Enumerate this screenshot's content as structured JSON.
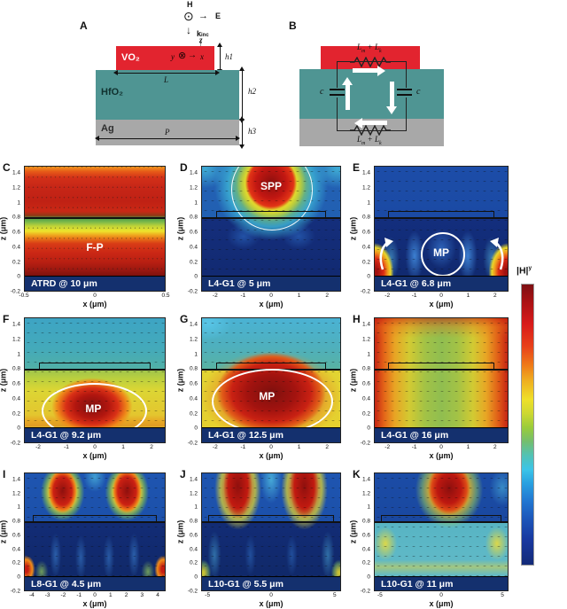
{
  "schematic": {
    "a_letter": "A",
    "b_letter": "B",
    "incident": {
      "h": "H",
      "e": "E",
      "k": "k",
      "k_sub": "inc"
    },
    "axes_3d": {
      "z": "z",
      "y": "y",
      "x": "x"
    },
    "layers": {
      "vo2": "VO₂",
      "hfo2": "HfO₂",
      "ag": "Ag"
    },
    "dims": {
      "h1": "h1",
      "h2": "h2",
      "h3": "h3",
      "L": "L",
      "P": "P"
    },
    "circuit": {
      "cap_left": "c",
      "cap_right": "c",
      "L1": "L",
      "s1": "m",
      "mid": "+",
      "L2": "L",
      "s2": "k"
    }
  },
  "axes": {
    "xlabel": "x (μm)",
    "zlabel": "z (μm)",
    "z": {
      "min": -0.2,
      "max": 1.5,
      "ticks": [
        1.4,
        1.2,
        1,
        0.8,
        0.6,
        0.4,
        0.2,
        0,
        -0.2
      ]
    }
  },
  "panels": {
    "C": {
      "letter": "C",
      "label": "ATRD @ 10 μm",
      "annotation": "F-P",
      "x": {
        "min": -0.5,
        "max": 0.5,
        "ticks": [
          -0.5,
          0,
          0.5
        ]
      }
    },
    "D": {
      "letter": "D",
      "label": "L4-G1 @ 5 μm",
      "annotation": "SPP",
      "x": {
        "min": -2.5,
        "max": 2.5,
        "ticks": [
          -2,
          -1,
          0,
          1,
          2
        ]
      }
    },
    "E": {
      "letter": "E",
      "label": "L4-G1 @ 6.8 μm",
      "annotation": "MP",
      "x": {
        "min": -2.5,
        "max": 2.5,
        "ticks": [
          -2,
          -1,
          0,
          1,
          2
        ]
      }
    },
    "F": {
      "letter": "F",
      "label": "L4-G1 @ 9.2 μm",
      "annotation": "MP",
      "x": {
        "min": -2.5,
        "max": 2.5,
        "ticks": [
          -2,
          -1,
          0,
          1,
          2
        ]
      }
    },
    "G": {
      "letter": "G",
      "label": "L4-G1 @ 12.5 μm",
      "annotation": "MP",
      "x": {
        "min": -2.5,
        "max": 2.5,
        "ticks": [
          -2,
          -1,
          0,
          1,
          2
        ]
      }
    },
    "H": {
      "letter": "H",
      "label": "L4-G1 @ 16 μm",
      "x": {
        "min": -2.5,
        "max": 2.5,
        "ticks": [
          -2,
          -1,
          0,
          1,
          2
        ]
      }
    },
    "I": {
      "letter": "I",
      "label": "L8-G1 @ 4.5 μm",
      "x": {
        "min": -4.5,
        "max": 4.5,
        "ticks": [
          -4,
          -3,
          -2,
          -1,
          0,
          1,
          2,
          3,
          4
        ]
      }
    },
    "J": {
      "letter": "J",
      "label": "L10-G1 @ 5.5 μm",
      "x": {
        "min": -5.5,
        "max": 5.5,
        "ticks": [
          -5,
          0,
          5
        ]
      }
    },
    "K": {
      "letter": "K",
      "label": "L10-G1 @ 11 μm",
      "x": {
        "min": -5.5,
        "max": 5.5,
        "ticks": [
          -5,
          0,
          5
        ]
      }
    }
  },
  "colorbar": {
    "label_main": "|H|",
    "label_sup": "y",
    "top_color": "#7d1013",
    "bottom_color": "#132a78",
    "colormap": "jet"
  },
  "colors": {
    "vo2_red": "#e2242f",
    "hfo2_teal": "#4f9593",
    "ag_gray": "#a8a8a8",
    "substrate_navy": "#14306e"
  },
  "chart_data": [
    {
      "panel": "C",
      "type": "heatmap",
      "title": "ATRD @ 10 μm",
      "annotation": "F-P",
      "xlabel": "x (μm)",
      "ylabel": "z (μm)",
      "xlim": [
        -0.5,
        0.5
      ],
      "zlim": [
        -0.2,
        1.5
      ],
      "surface_z": 0.8,
      "colormap": "jet",
      "description": "Unpatterned film; horizontal Fabry-Perot bands: orange/red above z=0.8, green-yellow node z≈0.6-0.8, red darkening to maroon toward z=0, Ag (navy) below z=0; dotted contour lines."
    },
    {
      "panel": "D",
      "type": "heatmap",
      "title": "L4-G1 @ 5 μm",
      "annotation": "SPP",
      "xlabel": "x (μm)",
      "ylabel": "z (μm)",
      "xlim": [
        -2.5,
        2.5
      ],
      "zlim": [
        -0.2,
        1.5
      ],
      "surface_z": 0.8,
      "colormap": "jet",
      "description": "SPP hotspot above VO2 bar centered at x=0, z≈1.0-1.5 with yellow-green halo and white contour; dark blue spacer below; quiver arrows."
    },
    {
      "panel": "E",
      "type": "heatmap",
      "title": "L4-G1 @ 6.8 μm",
      "annotation": "MP",
      "xlabel": "x (μm)",
      "ylabel": "z (μm)",
      "xlim": [
        -2.5,
        2.5
      ],
      "zlim": [
        -0.2,
        1.5
      ],
      "surface_z": 0.8,
      "colormap": "jet",
      "description": "Mostly dark blue; red-yellow hotspots at bottom left/right corners; MP circulation circle at x=0, z≈0.33; white curved arrows at both edges."
    },
    {
      "panel": "F",
      "type": "heatmap",
      "title": "L4-G1 @ 9.2 μm",
      "annotation": "MP",
      "xlabel": "x (μm)",
      "ylabel": "z (μm)",
      "xlim": [
        -2.5,
        2.5
      ],
      "zlim": [
        -0.2,
        1.5
      ],
      "surface_z": 0.8,
      "colormap": "jet",
      "description": "Teal above surface; yellow-green spacer with red MP blob centered x≈0, z≈0.2-0.5; white ellipse with MP label."
    },
    {
      "panel": "G",
      "type": "heatmap",
      "title": "L4-G1 @ 12.5 μm",
      "annotation": "MP",
      "xlabel": "x (μm)",
      "ylabel": "z (μm)",
      "xlim": [
        -2.5,
        2.5
      ],
      "zlim": [
        -0.2,
        1.5
      ],
      "surface_z": 0.8,
      "colormap": "jet",
      "description": "Cyan above surface; broad deep-red MP region filling spacer, yellow edges; large white ellipse with MP label."
    },
    {
      "panel": "H",
      "type": "heatmap",
      "title": "L4-G1 @ 16 μm",
      "xlabel": "x (μm)",
      "ylabel": "z (μm)",
      "xlim": [
        -2.5,
        2.5
      ],
      "zlim": [
        -0.2,
        1.5
      ],
      "surface_z": 0.8,
      "colormap": "jet",
      "description": "Near-uniform field: red at lateral edges grading through orange/yellow to green center; red band at top."
    },
    {
      "panel": "I",
      "type": "heatmap",
      "title": "L8-G1 @ 4.5 μm",
      "xlabel": "x (μm)",
      "ylabel": "z (μm)",
      "xlim": [
        -4.5,
        4.5
      ],
      "zlim": [
        -0.2,
        1.5
      ],
      "surface_z": 0.8,
      "colormap": "jet",
      "description": "Two red lobes above surface at x≈±2 with yellow-green halos; dark blue spacer with faint columns; red spots at bottom corners."
    },
    {
      "panel": "J",
      "type": "heatmap",
      "title": "L10-G1 @ 5.5 μm",
      "xlabel": "x (μm)",
      "ylabel": "z (μm)",
      "xlim": [
        -5.5,
        5.5
      ],
      "zlim": [
        -0.2,
        1.5
      ],
      "surface_z": 0.8,
      "colormap": "jet",
      "description": "Two tall red lobes above surface at x≈±2.7 reaching top; dark blue spacer; yellow-green patches at bottom corners."
    },
    {
      "panel": "K",
      "type": "heatmap",
      "title": "L10-G1 @ 11 μm",
      "xlabel": "x (μm)",
      "ylabel": "z (μm)",
      "xlim": [
        -5.5,
        5.5
      ],
      "zlim": [
        -0.2,
        1.5
      ],
      "surface_z": 0.8,
      "colormap": "jet",
      "description": "Single broad red lobe above surface near x≈0.5 with yellow-green halo, blue elsewhere; cyan spacer with yellow patches at sides and near bottom."
    }
  ]
}
